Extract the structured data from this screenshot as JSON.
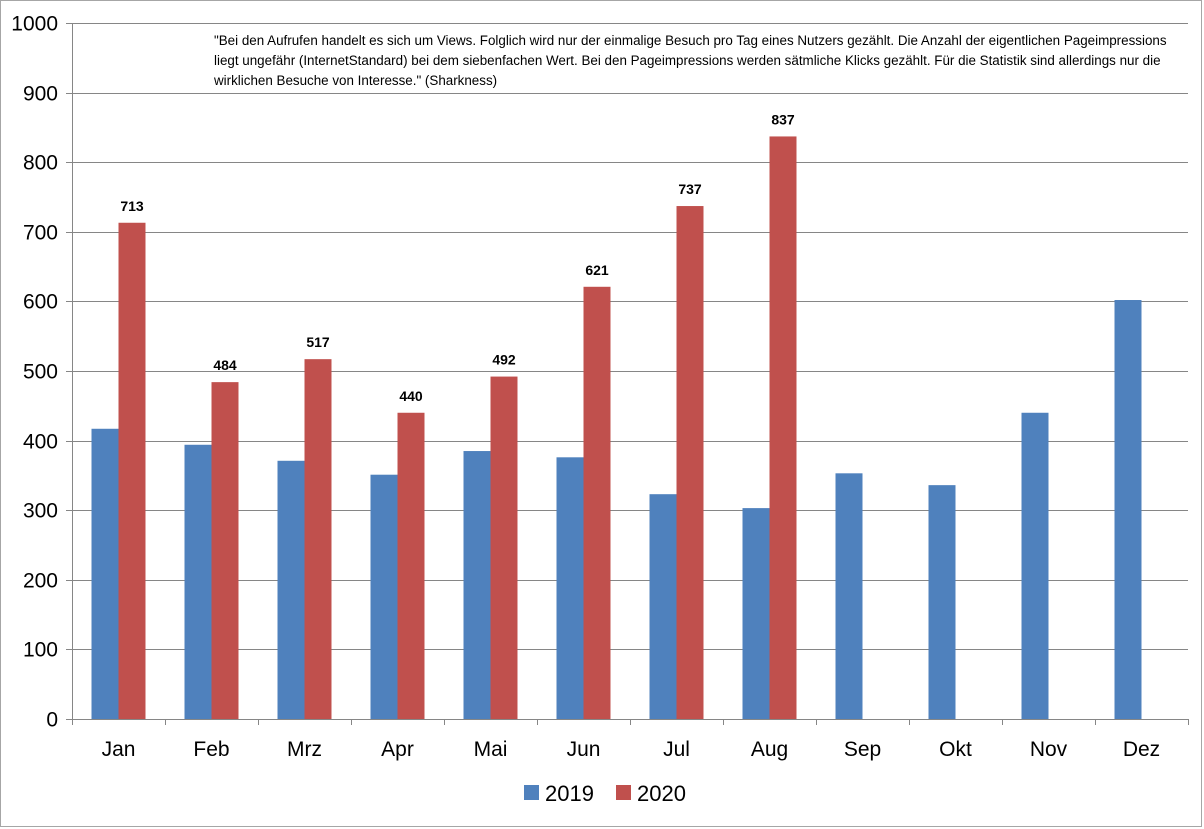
{
  "chart_data": {
    "type": "bar",
    "categories": [
      "Jan",
      "Feb",
      "Mrz",
      "Apr",
      "Mai",
      "Jun",
      "Jul",
      "Aug",
      "Sep",
      "Okt",
      "Nov",
      "Dez"
    ],
    "series": [
      {
        "name": "2019",
        "color": "#4f81bd",
        "values": [
          417,
          394,
          371,
          351,
          385,
          376,
          323,
          303,
          353,
          336,
          440,
          602
        ],
        "data_labels": false
      },
      {
        "name": "2020",
        "color": "#c0504d",
        "values": [
          713,
          484,
          517,
          440,
          492,
          621,
          737,
          837,
          null,
          null,
          null,
          null
        ],
        "data_labels": true
      }
    ],
    "ylim": [
      0,
      1000
    ],
    "yticks": [
      0,
      100,
      200,
      300,
      400,
      500,
      600,
      700,
      800,
      900,
      1000
    ],
    "grid": true,
    "legend": "bottom",
    "annotation": "\"Bei den Aufrufen handelt es sich um Views. Folglich wird nur der einmalige Besuch pro Tag eines Nutzers gezählt. Die Anzahl der eigentlichen Pageimpressions liegt ungefähr (InternetStandard) bei dem siebenfachen Wert. Bei den Pageimpressions werden sätmliche Klicks gezählt. Für die Statistik sind allerdings nur die wirklichen Besuche von Interesse.\" (Sharkness)",
    "title": "",
    "xlabel": "",
    "ylabel": ""
  }
}
